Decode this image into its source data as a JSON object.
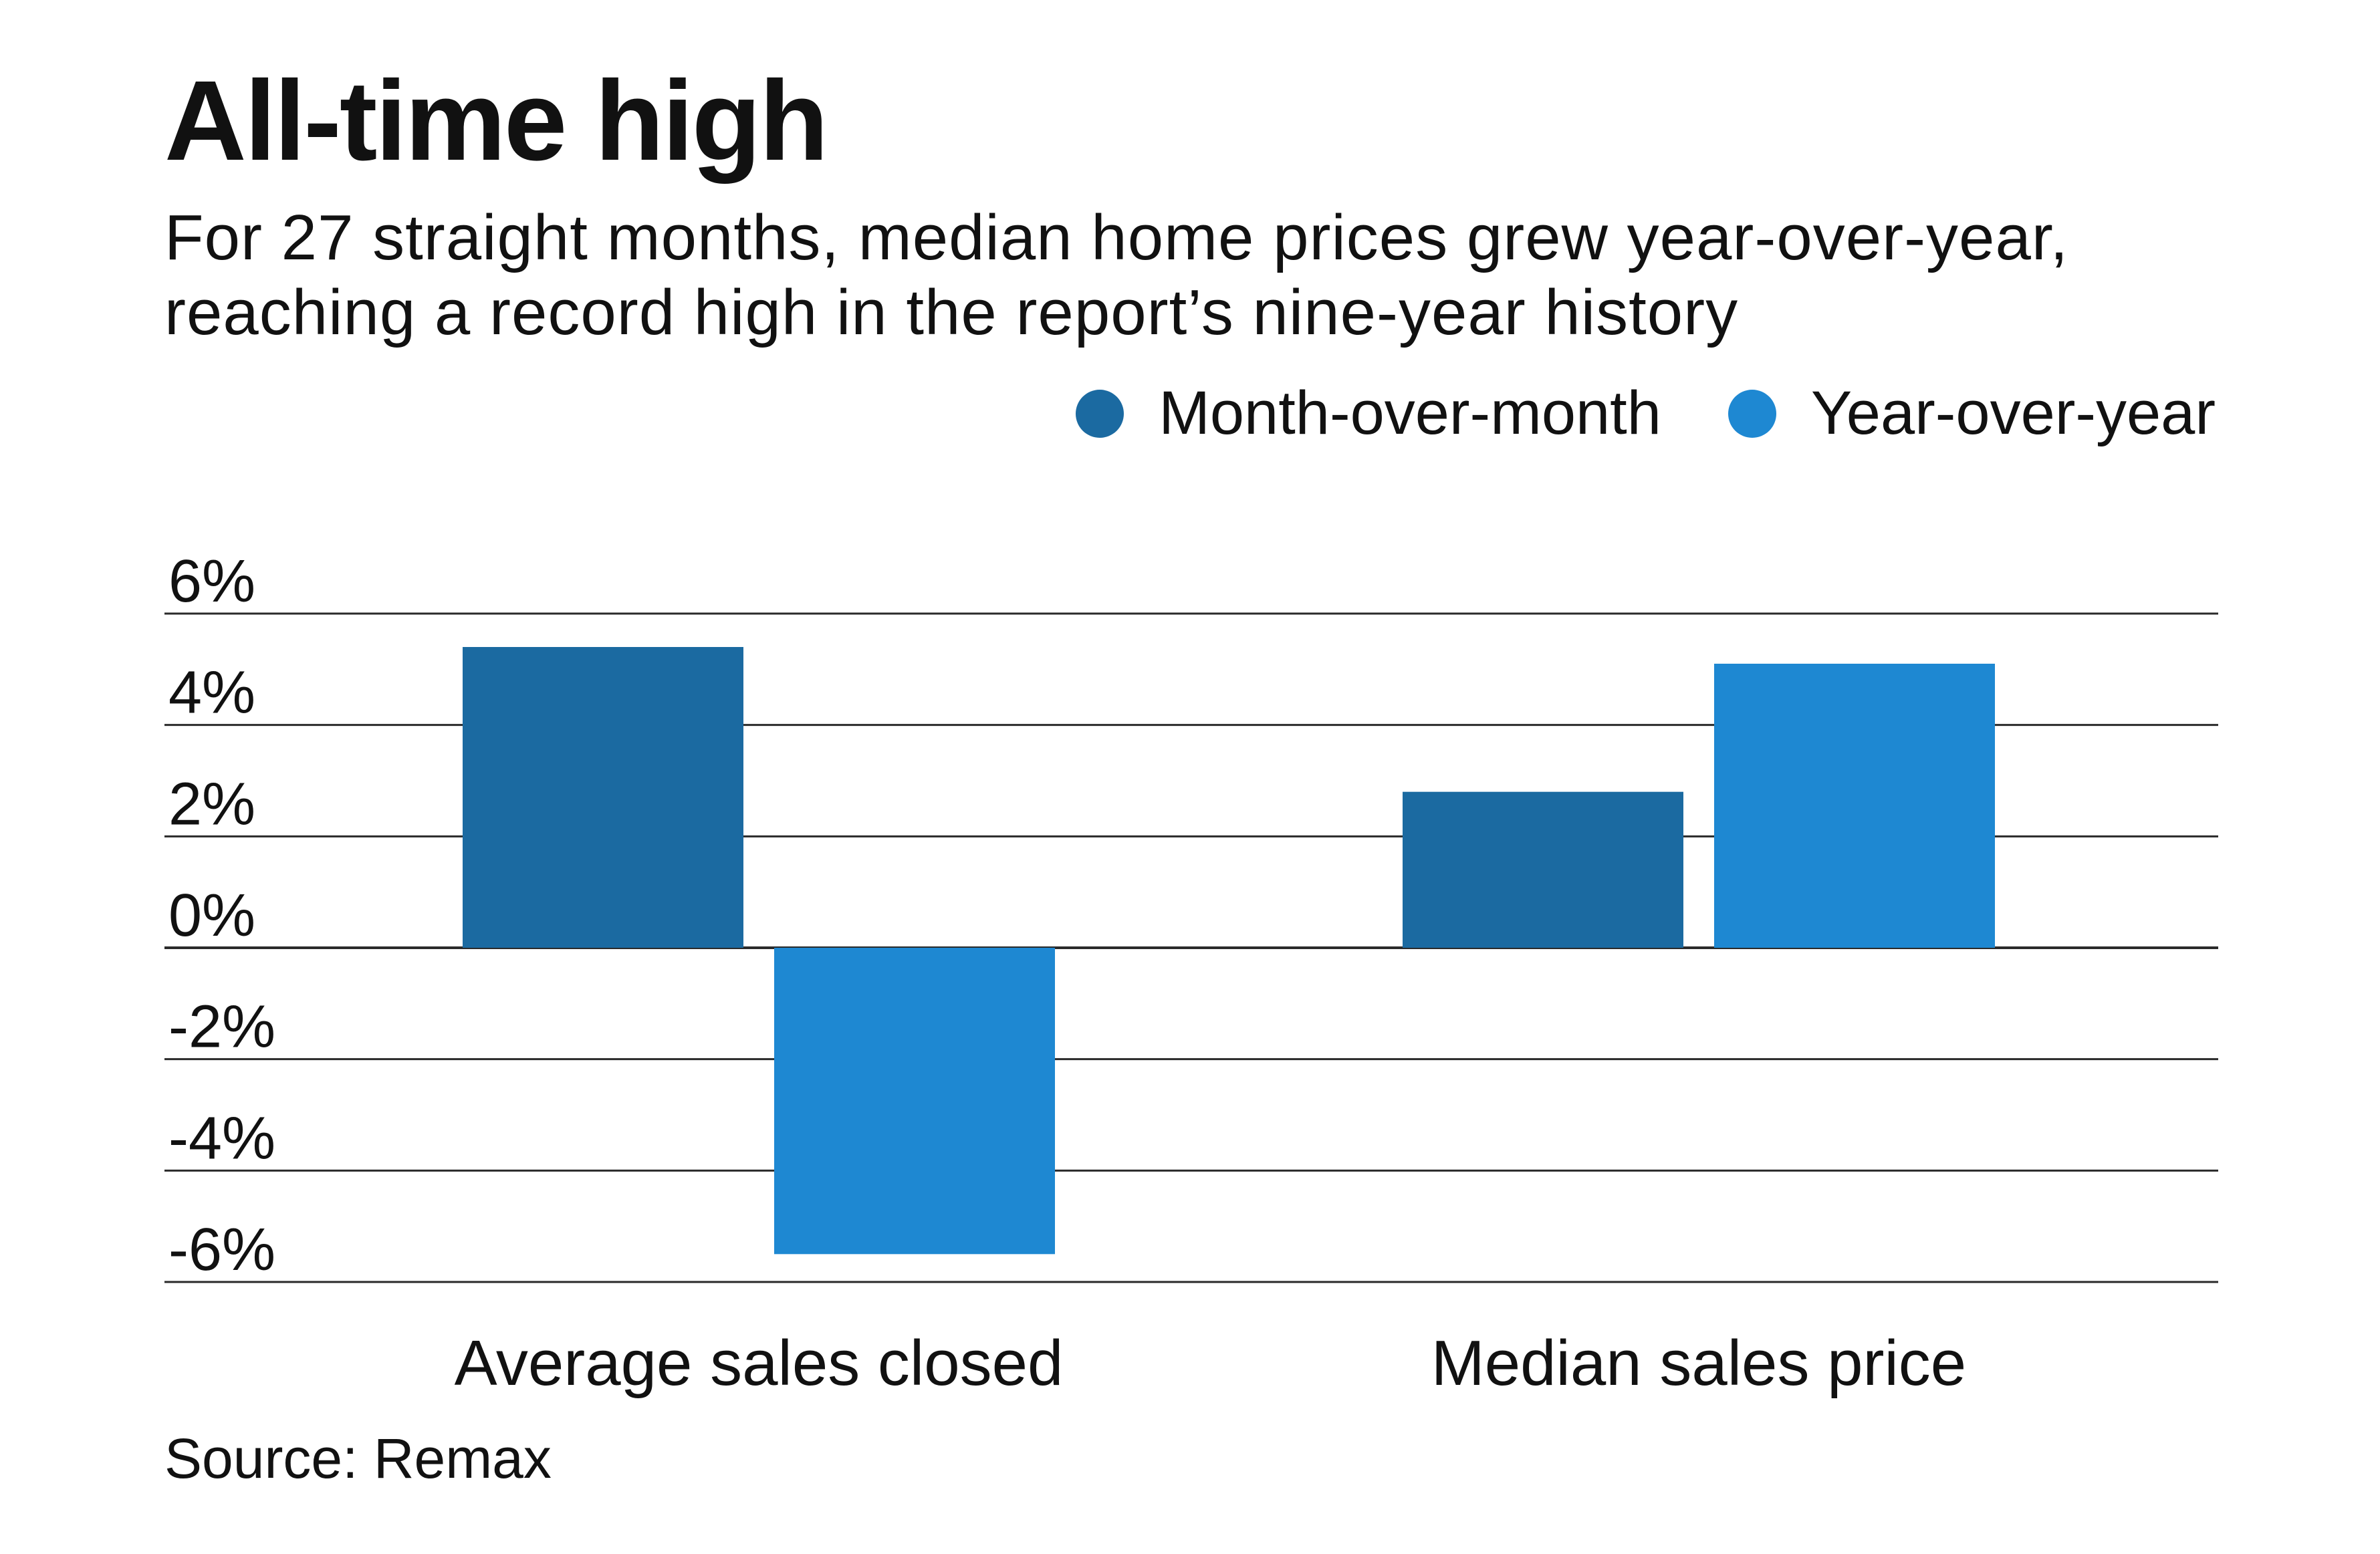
{
  "title": "All-time high",
  "subtitle": "For 27 straight months, median home prices grew year-over-year, reaching a record high in the report’s nine-year history",
  "source": "Source: Remax",
  "colors": {
    "month_over_month": "#1b6aa1",
    "year_over_year": "#1e88d2",
    "gridline": "#2a2a2a"
  },
  "chart_data": {
    "type": "bar",
    "categories": [
      "Average sales closed",
      "Median sales price"
    ],
    "series": [
      {
        "name": "Month-over-month",
        "values": [
          5.4,
          2.8
        ]
      },
      {
        "name": "Year-over-year",
        "values": [
          -5.5,
          5.1
        ]
      }
    ],
    "yticks": [
      "6%",
      "4%",
      "2%",
      "0%",
      "-2%",
      "-4%",
      "-6%"
    ],
    "ytick_values": [
      6,
      4,
      2,
      0,
      -2,
      -4,
      -6
    ],
    "ylim": [
      -6,
      6
    ],
    "grid": true,
    "legend_position": "top-right",
    "xlabel": "",
    "ylabel": ""
  }
}
